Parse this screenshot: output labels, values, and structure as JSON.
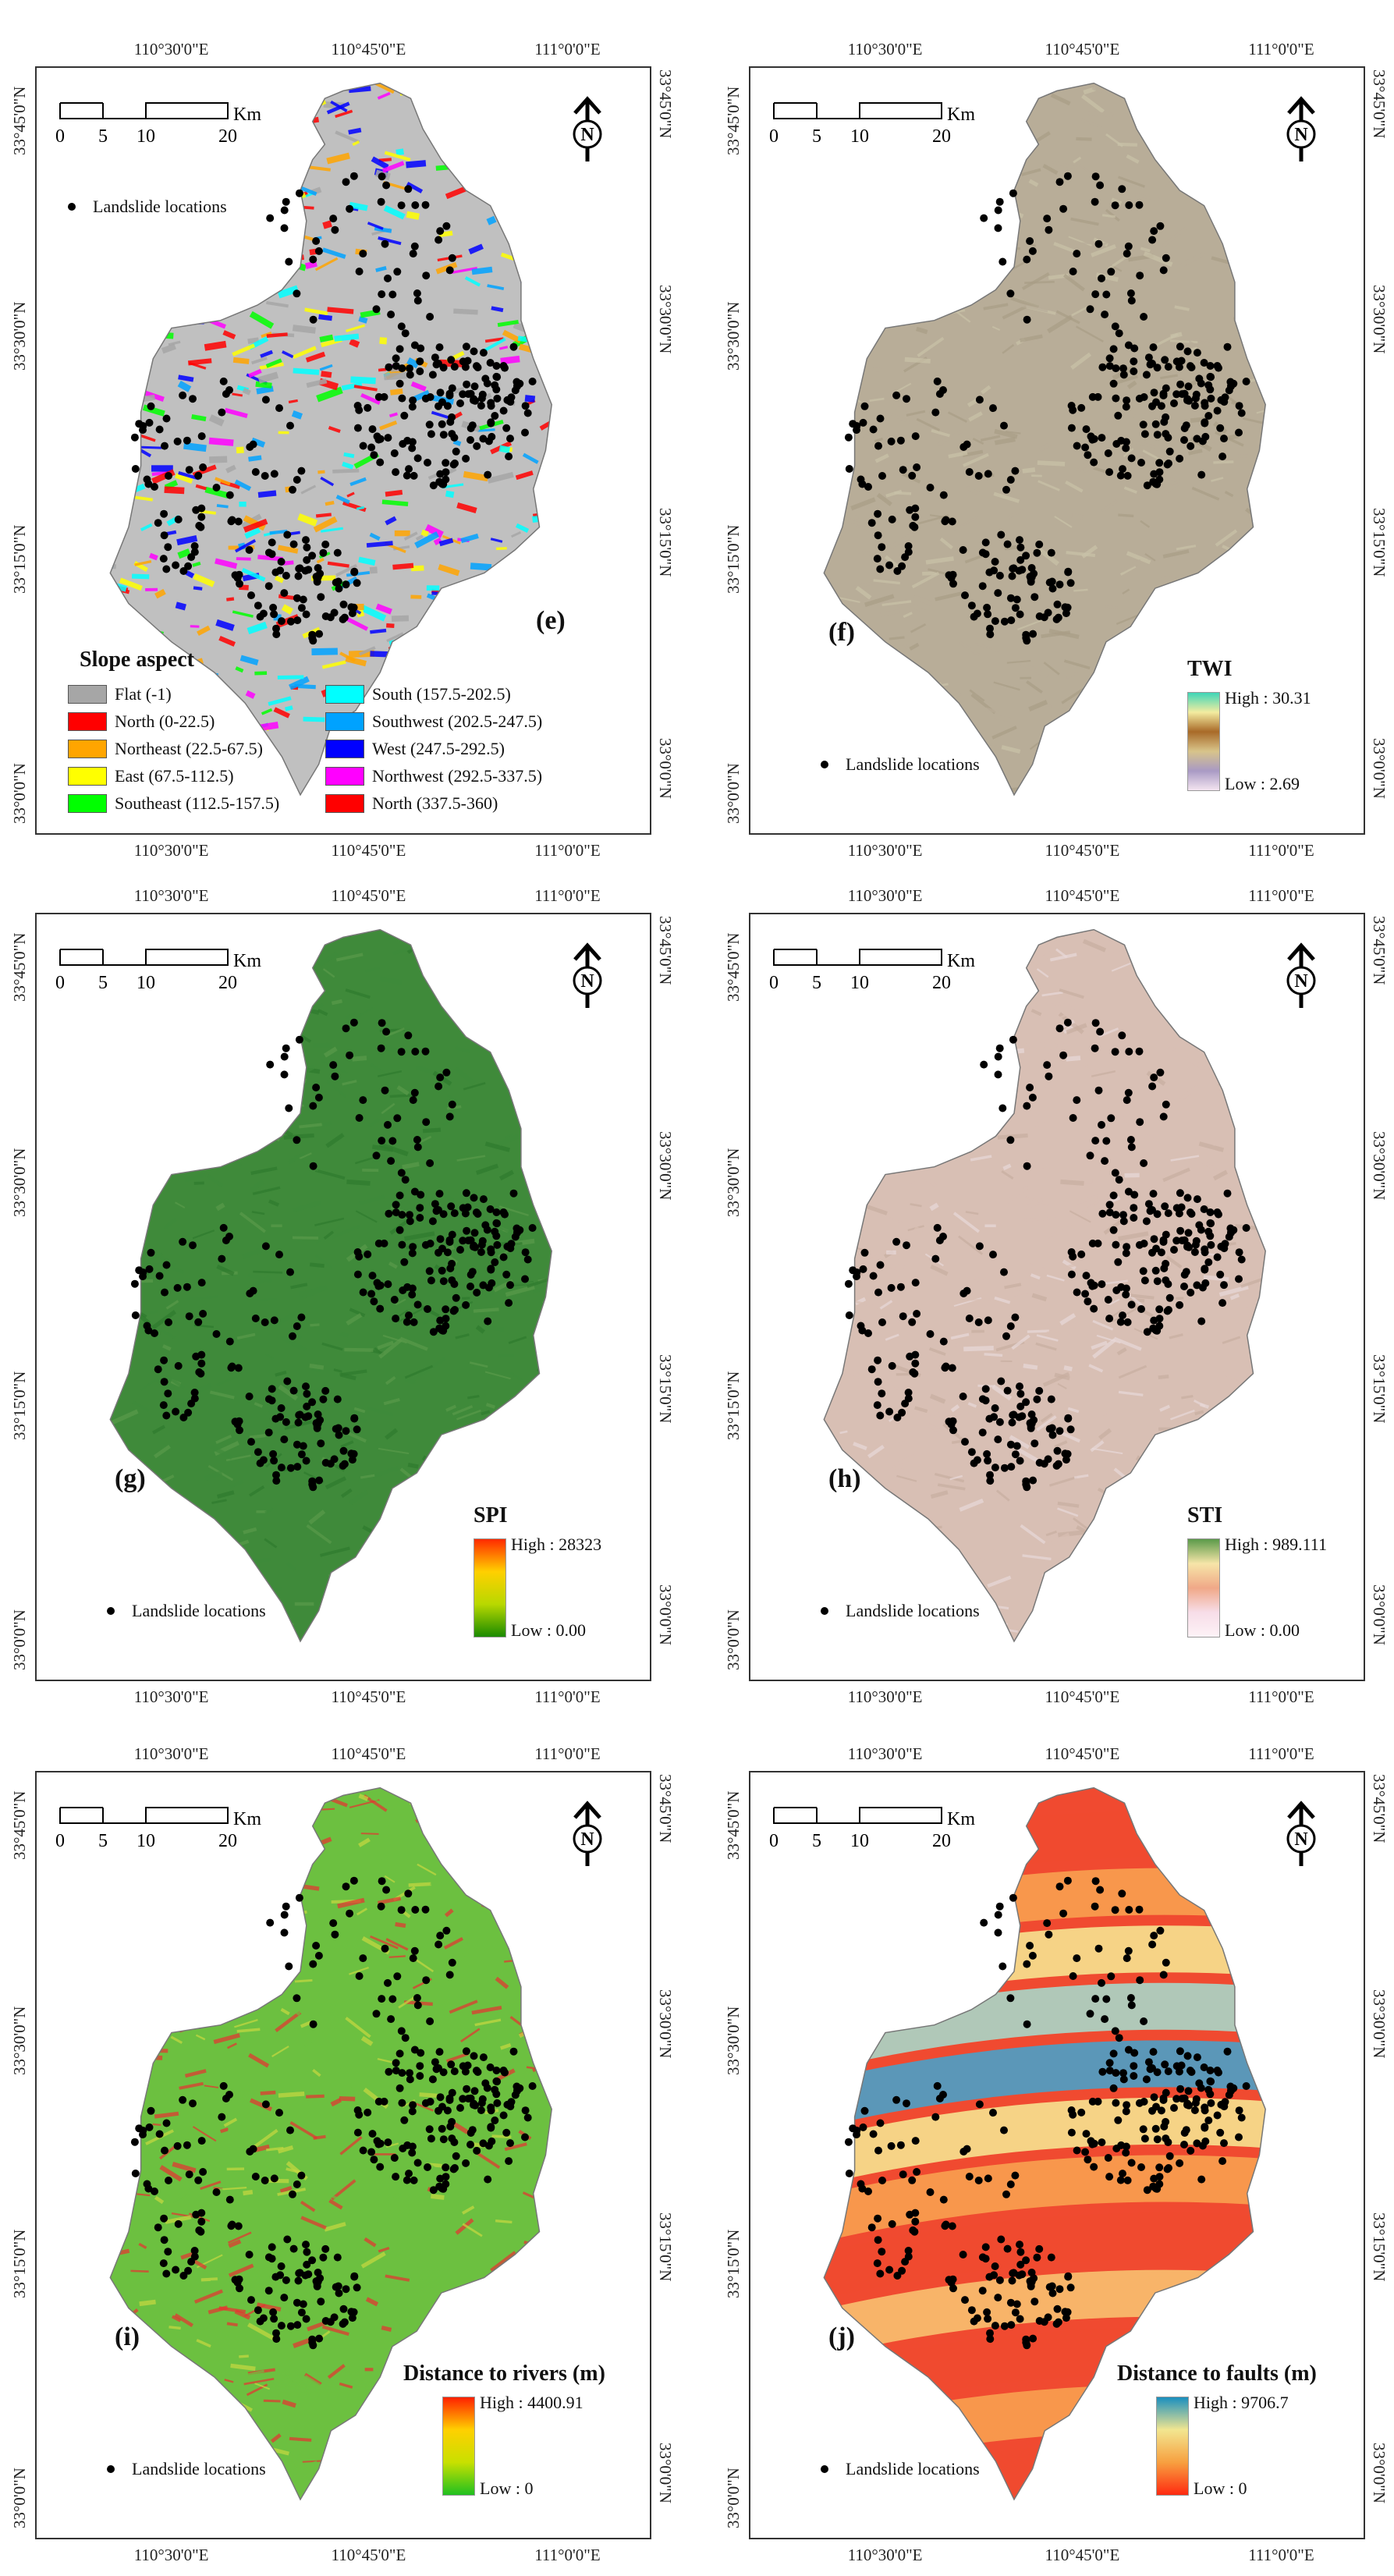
{
  "panels": [
    {
      "id": "e",
      "label": "(e)",
      "legend_title": "Slope aspect",
      "map_style": "aspect",
      "aspect_classes": [
        {
          "label": "Flat (-1)",
          "color": "#a6a6a6"
        },
        {
          "label": "North (0-22.5)",
          "color": "#ff0000"
        },
        {
          "label": "Northeast (22.5-67.5)",
          "color": "#ffa500"
        },
        {
          "label": "East (67.5-112.5)",
          "color": "#ffff00"
        },
        {
          "label": "Southeast (112.5-157.5)",
          "color": "#00ff00"
        },
        {
          "label": "South (157.5-202.5)",
          "color": "#00ffff"
        },
        {
          "label": "Southwest (202.5-247.5)",
          "color": "#00a2ff"
        },
        {
          "label": "West (247.5-292.5)",
          "color": "#0000ff"
        },
        {
          "label": "Northwest (292.5-337.5)",
          "color": "#ff00ff"
        },
        {
          "label": "North (337.5-360)",
          "color": "#ff0000"
        }
      ]
    },
    {
      "id": "f",
      "label": "(f)",
      "legend_title": "TWI",
      "high": "High : 30.31",
      "low": "Low : 2.69",
      "ramp_colors": [
        "#3fd6b8",
        "#f3eca0",
        "#a86a28",
        "#d8c48a",
        "#a99ac4",
        "#f4e4f0"
      ],
      "map_colors": [
        "#b8ad98",
        "#a89c86",
        "#c9c2a8"
      ]
    },
    {
      "id": "g",
      "label": "(g)",
      "legend_title": "SPI",
      "high": "High : 28323",
      "low": "Low : 0.00",
      "ramp_colors": [
        "#ff2a00",
        "#ffd000",
        "#b8d800",
        "#1a8a00"
      ],
      "map_colors": [
        "#3f8a3a",
        "#2f7a2e",
        "#5a9a4a"
      ]
    },
    {
      "id": "h",
      "label": "(h)",
      "legend_title": "STI",
      "high": "High : 989.111",
      "low": "Low : 0.00",
      "ramp_colors": [
        "#5a9a4a",
        "#f6e5a8",
        "#f0a888",
        "#f7dde8",
        "#fdf2f6"
      ],
      "map_colors": [
        "#d8bfb4",
        "#c8aea0",
        "#e8d8d8"
      ]
    },
    {
      "id": "i",
      "label": "(i)",
      "legend_title": "Distance to rivers (m)",
      "high": "High : 4400.91",
      "low": "Low : 0",
      "ramp_colors": [
        "#ff2000",
        "#ffd000",
        "#c8e000",
        "#20c020"
      ],
      "map_colors": [
        "#6cc040",
        "#c8d840",
        "#e83030"
      ]
    },
    {
      "id": "j",
      "label": "(j)",
      "legend_title": "Distance to faults (m)",
      "high": "High : 9706.7",
      "low": "Low : 0",
      "ramp_colors": [
        "#1a8fbf",
        "#f2e690",
        "#f7a040",
        "#ff2a10"
      ],
      "map_colors": [
        "#f04a30",
        "#f8c070",
        "#4aa0c8"
      ]
    }
  ],
  "common": {
    "scale_unit": "Km",
    "scale_ticks": [
      "0",
      "5",
      "10",
      "20"
    ],
    "north_letter": "N",
    "point_legend": "Landslide locations",
    "lon_labels": [
      "110°30'0\"E",
      "110°45'0\"E",
      "111°0'0\"E"
    ],
    "lat_labels": [
      "33°45'0\"N",
      "33°30'0\"N",
      "33°15'0\"N",
      "33°0'0\"N"
    ],
    "point_color": "#000000"
  }
}
